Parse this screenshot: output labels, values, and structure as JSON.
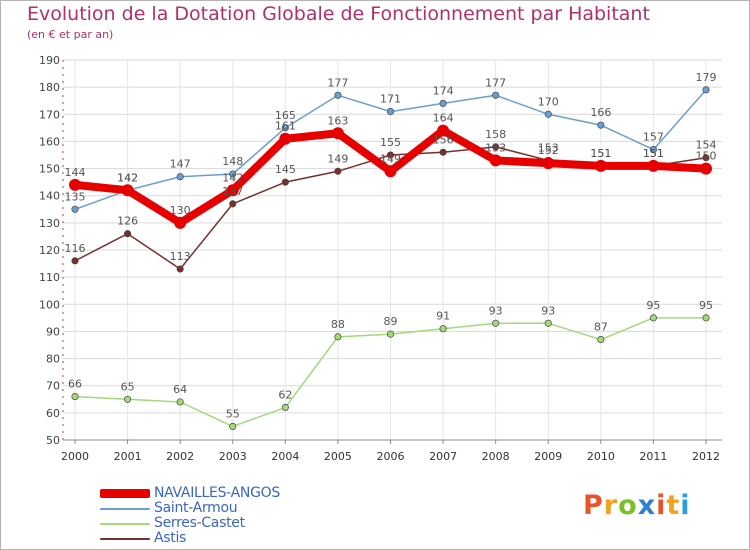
{
  "title": "Evolution de la Dotation Globale de Fonctionnement par Habitant",
  "subtitle": "(en € et par an)",
  "logo": {
    "text": "Proxiti",
    "letters": [
      {
        "ch": "P",
        "color": "#e8542a"
      },
      {
        "ch": "r",
        "color": "#f2a21f"
      },
      {
        "ch": "o",
        "color": "#7cbf2a"
      },
      {
        "ch": "x",
        "color": "#2d7fd8"
      },
      {
        "ch": "i",
        "color": "#e8542a"
      },
      {
        "ch": "t",
        "color": "#f2a21f"
      },
      {
        "ch": "i",
        "color": "#2d9fd8"
      }
    ]
  },
  "chart_data": {
    "type": "line",
    "title": "Evolution de la Dotation Globale de Fonctionnement par Habitant",
    "subtitle": "(en € et par an)",
    "x": [
      "2000",
      "2001",
      "2002",
      "2003",
      "2004",
      "2005",
      "2006",
      "2007",
      "2008",
      "2009",
      "2010",
      "2011",
      "2012"
    ],
    "ylim": [
      50,
      190
    ],
    "yticks": [
      50,
      60,
      70,
      80,
      90,
      100,
      110,
      120,
      130,
      140,
      150,
      160,
      170,
      180,
      190
    ],
    "grid": true,
    "legend_position": "bottom-left",
    "series": [
      {
        "name": "NAVAILLES-ANGOS",
        "color": "#e60000",
        "emphasis": true,
        "values": [
          144,
          142,
          130,
          142,
          161,
          163,
          149,
          164,
          153,
          152,
          151,
          151,
          150
        ]
      },
      {
        "name": "Saint-Armou",
        "color": "#6a9fd2",
        "values": [
          135,
          142,
          147,
          148,
          165,
          177,
          171,
          174,
          177,
          170,
          166,
          157,
          179
        ]
      },
      {
        "name": "Serres-Castet",
        "color": "#a3d977",
        "values": [
          66,
          65,
          64,
          55,
          62,
          88,
          89,
          91,
          93,
          93,
          87,
          95,
          95
        ]
      },
      {
        "name": "Astis",
        "color": "#7a2e2e",
        "values": [
          116,
          126,
          113,
          137,
          145,
          149,
          155,
          156,
          158,
          153,
          151,
          151,
          154
        ]
      }
    ]
  }
}
